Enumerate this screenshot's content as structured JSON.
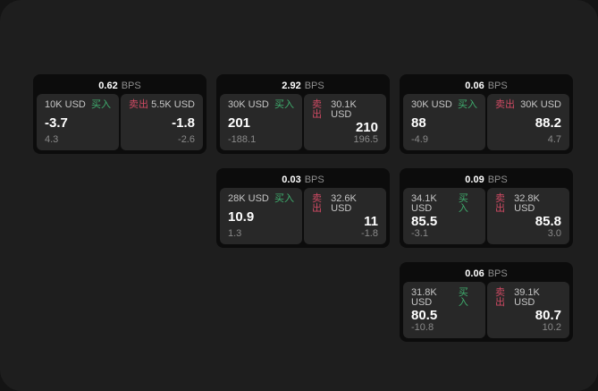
{
  "labels": {
    "bps_unit": "BPS",
    "buy": "买入",
    "sell": "卖出"
  },
  "colors": {
    "outer_background": "#141414",
    "panel_background": "#1e1e1e",
    "card_background": "#0c0c0c",
    "subcard_background": "#282828",
    "buy_accent": "#3fae6e",
    "sell_accent": "#cf4a63"
  },
  "cards": [
    {
      "bps": "0.62",
      "buy": {
        "amount": "10K USD",
        "value": "-3.7",
        "delta": "4.3"
      },
      "sell": {
        "amount": "5.5K USD",
        "value": "-1.8",
        "delta": "-2.6"
      }
    },
    {
      "bps": "2.92",
      "buy": {
        "amount": "30K USD",
        "value": "201",
        "delta": "-188.1"
      },
      "sell": {
        "amount": "30.1K USD",
        "value": "210",
        "delta": "196.5"
      }
    },
    {
      "bps": "0.06",
      "buy": {
        "amount": "30K USD",
        "value": "88",
        "delta": "-4.9"
      },
      "sell": {
        "amount": "30K USD",
        "value": "88.2",
        "delta": "4.7"
      }
    },
    {
      "bps": "0.03",
      "buy": {
        "amount": "28K USD",
        "value": "10.9",
        "delta": "1.3"
      },
      "sell": {
        "amount": "32.6K USD",
        "value": "11",
        "delta": "-1.8"
      }
    },
    {
      "bps": "0.09",
      "buy": {
        "amount": "34.1K USD",
        "value": "85.5",
        "delta": "-3.1"
      },
      "sell": {
        "amount": "32.8K USD",
        "value": "85.8",
        "delta": "3.0"
      }
    },
    {
      "bps": "0.06",
      "buy": {
        "amount": "31.8K USD",
        "value": "80.5",
        "delta": "-10.8"
      },
      "sell": {
        "amount": "39.1K USD",
        "value": "80.7",
        "delta": "10.2"
      }
    }
  ]
}
